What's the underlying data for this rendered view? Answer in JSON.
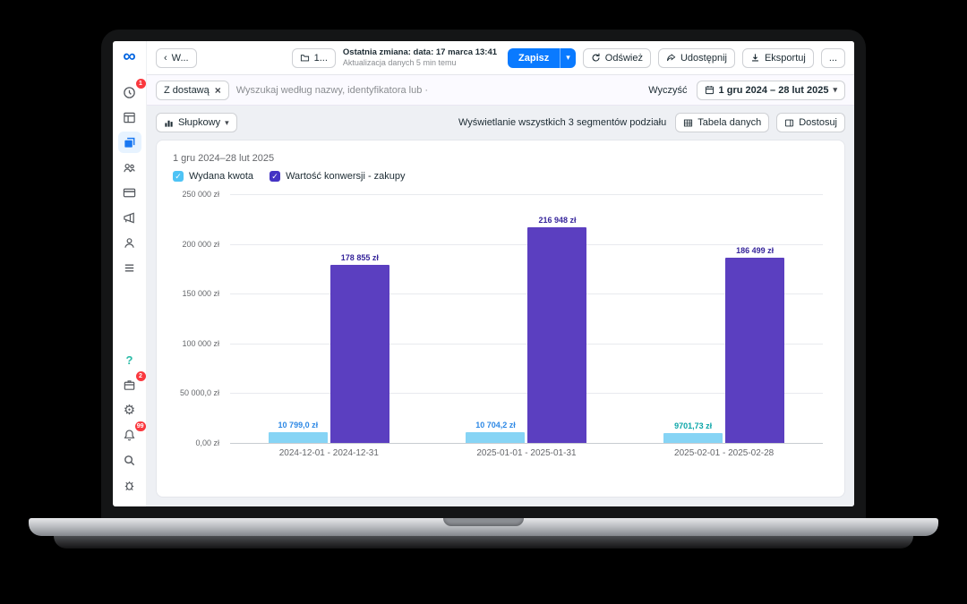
{
  "toolbar": {
    "back_label": "W...",
    "back_chevron": "‹",
    "campaign_button_label": "1...",
    "last_change_line1": "Ostatnia zmiana: data: 17 marca 13:41",
    "last_change_line2": "Aktualizacja danych 5 min temu",
    "save_label": "Zapisz",
    "save_caret": "▾",
    "refresh_label": "Odśwież",
    "share_label": "Udostępnij",
    "export_label": "Eksportuj",
    "more_label": "..."
  },
  "filter_bar": {
    "chip_label": "Z dostawą",
    "chip_close": "×",
    "search_placeholder": "Wyszukaj według nazwy, identyfikatora lub ·",
    "clear_label": "Wyczyść",
    "date_range": "1 gru 2024 – 28 lut 2025",
    "date_caret": "▾"
  },
  "chart_controls": {
    "type_label": "Słupkowy",
    "type_caret": "▾",
    "segments_text": "Wyświetlanie wszystkich 3 segmentów podziału",
    "table_label": "Tabela danych",
    "customize_label": "Dostosuj"
  },
  "chart_data": {
    "type": "bar",
    "title": "1 gru 2024–28 lut 2025",
    "categories": [
      "2024-12-01 - 2024-12-31",
      "2025-01-01 - 2025-01-31",
      "2025-02-01 - 2025-02-28"
    ],
    "series": [
      {
        "name": "Wydana kwota",
        "color": "#86d4f5",
        "values": [
          10799.0,
          10704.2,
          9701.73
        ],
        "labels": [
          "10 799,0 zł",
          "10 704,2 zł",
          "9701,73 zł"
        ],
        "label_colors": [
          "#2d88e5",
          "#2d88e5",
          "#0aa5a8"
        ]
      },
      {
        "name": "Wartość konwersji - zakupy",
        "color": "#5b3fc0",
        "values": [
          178855,
          216948,
          186499
        ],
        "labels": [
          "178 855 zł",
          "216 948 zł",
          "186 499 zł"
        ],
        "label_colors": [
          "#36259b",
          "#36259b",
          "#36259b"
        ]
      }
    ],
    "ylim": [
      0,
      250000
    ],
    "ytick_labels": [
      "250 000 zł",
      "200 000 zł",
      "150 000 zł",
      "100 000 zł",
      "50 000,0 zł",
      "0,00 zł"
    ],
    "legend_check": "✓",
    "grid": true,
    "legend_position": "top-left"
  },
  "sidebar": {
    "logo_glyph": "∞",
    "help_glyph": "?",
    "gear_glyph": "⚙",
    "top_items": [
      {
        "name": "ads-activity",
        "badge": "1"
      },
      {
        "name": "account-overview",
        "badge": ""
      },
      {
        "name": "campaigns",
        "badge": ""
      },
      {
        "name": "audiences",
        "badge": ""
      },
      {
        "name": "billing",
        "badge": ""
      },
      {
        "name": "ads-reporting",
        "badge": ""
      },
      {
        "name": "account-user",
        "badge": ""
      },
      {
        "name": "all-tools",
        "badge": ""
      }
    ],
    "bottom_items": [
      {
        "name": "help",
        "badge": ""
      },
      {
        "name": "business-suite",
        "badge": "2"
      },
      {
        "name": "settings",
        "badge": ""
      },
      {
        "name": "notifications",
        "badge": "99"
      },
      {
        "name": "search",
        "badge": ""
      },
      {
        "name": "report-bug",
        "badge": ""
      }
    ]
  }
}
